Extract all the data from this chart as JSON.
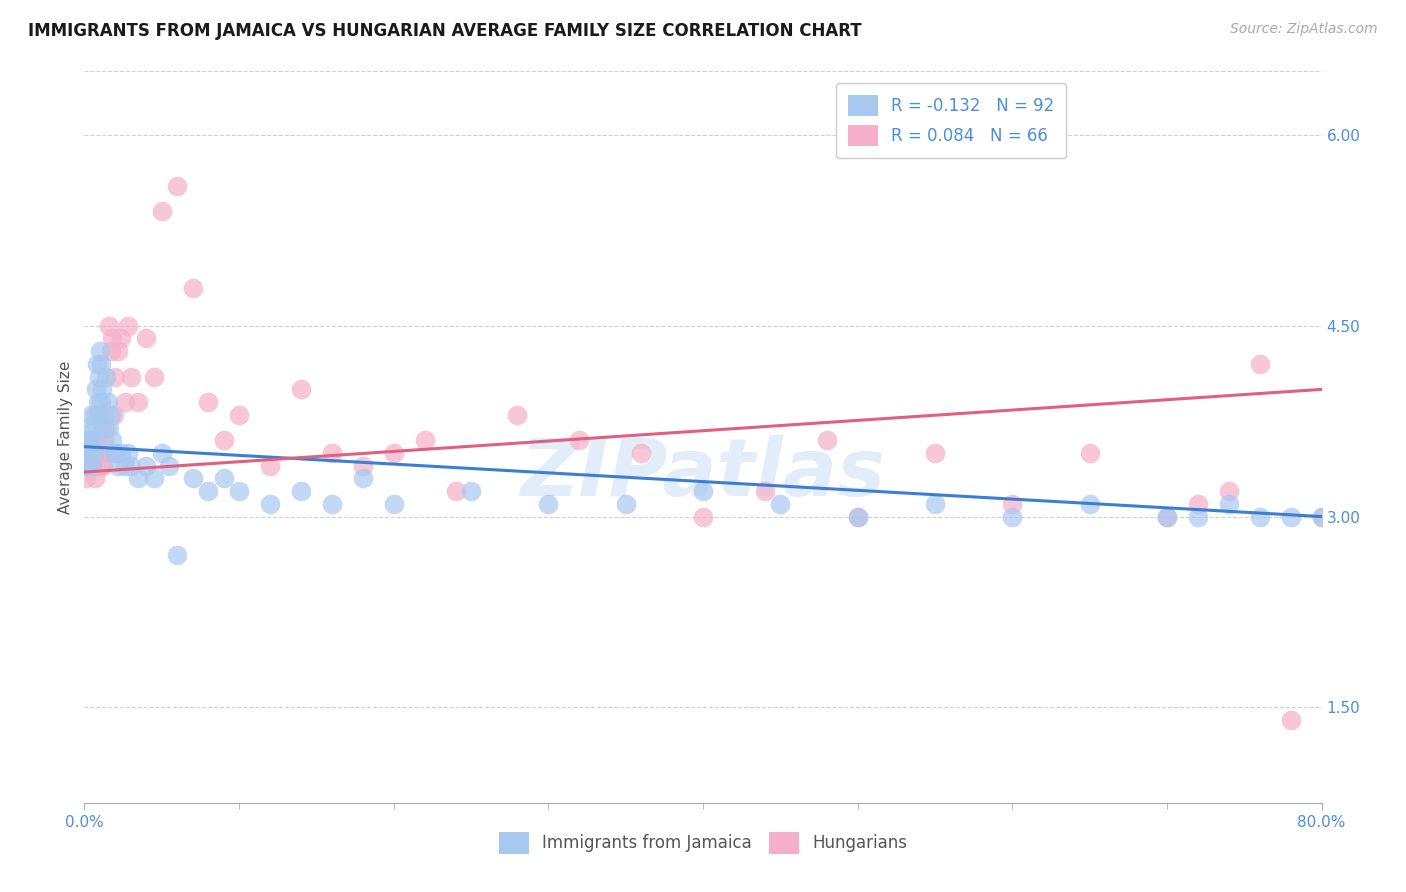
{
  "title": "IMMIGRANTS FROM JAMAICA VS HUNGARIAN AVERAGE FAMILY SIZE CORRELATION CHART",
  "source": "Source: ZipAtlas.com",
  "ylabel": "Average Family Size",
  "right_yticks": [
    1.5,
    3.0,
    4.5,
    6.0
  ],
  "watermark": "ZIPatlas",
  "legend_entry_jamaica": "R = -0.132   N = 92",
  "legend_entry_hungarian": "R = 0.084   N = 66",
  "legend_labels_bottom": [
    "Immigrants from Jamaica",
    "Hungarians"
  ],
  "jamaica_color": "#a8c8f0",
  "hungarian_color": "#f4b0c8",
  "jamaica_line_color": "#3a7fd5",
  "hungarian_line_color": "#e06080",
  "jamaica_scatter_x": [
    0.1,
    0.15,
    0.2,
    0.25,
    0.3,
    0.35,
    0.4,
    0.45,
    0.5,
    0.55,
    0.6,
    0.65,
    0.7,
    0.75,
    0.8,
    0.85,
    0.9,
    0.95,
    1.0,
    1.05,
    1.1,
    1.15,
    1.2,
    1.3,
    1.4,
    1.5,
    1.6,
    1.7,
    1.8,
    1.9,
    2.0,
    2.2,
    2.4,
    2.6,
    2.8,
    3.0,
    3.5,
    4.0,
    4.5,
    5.0,
    5.5,
    6.0,
    7.0,
    8.0,
    9.0,
    10.0,
    12.0,
    14.0,
    16.0,
    18.0,
    20.0,
    25.0,
    30.0,
    35.0,
    40.0,
    45.0,
    50.0,
    55.0,
    60.0,
    65.0,
    70.0,
    72.0,
    74.0,
    76.0,
    78.0,
    80.0
  ],
  "jamaica_scatter_y": [
    3.5,
    3.6,
    3.4,
    3.7,
    3.5,
    3.6,
    3.8,
    3.5,
    3.4,
    3.6,
    3.7,
    3.5,
    3.8,
    4.0,
    4.2,
    3.9,
    3.8,
    4.1,
    4.3,
    3.9,
    4.2,
    4.0,
    3.7,
    3.8,
    4.1,
    3.9,
    3.7,
    3.8,
    3.6,
    3.5,
    3.5,
    3.4,
    3.5,
    3.4,
    3.5,
    3.4,
    3.3,
    3.4,
    3.3,
    3.5,
    3.4,
    2.7,
    3.3,
    3.2,
    3.3,
    3.2,
    3.1,
    3.2,
    3.1,
    3.3,
    3.1,
    3.2,
    3.1,
    3.1,
    3.2,
    3.1,
    3.0,
    3.1,
    3.0,
    3.1,
    3.0,
    3.0,
    3.1,
    3.0,
    3.0,
    3.0
  ],
  "hungarian_scatter_x": [
    0.1,
    0.2,
    0.3,
    0.4,
    0.5,
    0.6,
    0.7,
    0.8,
    0.9,
    1.0,
    1.1,
    1.2,
    1.3,
    1.4,
    1.5,
    1.6,
    1.7,
    1.8,
    1.9,
    2.0,
    2.2,
    2.4,
    2.6,
    2.8,
    3.0,
    3.5,
    4.0,
    4.5,
    5.0,
    6.0,
    7.0,
    8.0,
    9.0,
    10.0,
    12.0,
    14.0,
    16.0,
    18.0,
    20.0,
    22.0,
    24.0,
    28.0,
    32.0,
    36.0,
    40.0,
    44.0,
    48.0,
    50.0,
    55.0,
    60.0,
    65.0,
    70.0,
    72.0,
    74.0,
    76.0,
    78.0,
    80.0
  ],
  "hungarian_scatter_y": [
    3.3,
    3.4,
    3.5,
    3.6,
    3.4,
    3.5,
    3.3,
    3.6,
    3.8,
    3.4,
    3.5,
    3.4,
    3.6,
    3.7,
    3.5,
    4.5,
    4.3,
    4.4,
    3.8,
    4.1,
    4.3,
    4.4,
    3.9,
    4.5,
    4.1,
    3.9,
    4.4,
    4.1,
    5.4,
    5.6,
    4.8,
    3.9,
    3.6,
    3.8,
    3.4,
    4.0,
    3.5,
    3.4,
    3.5,
    3.6,
    3.2,
    3.8,
    3.6,
    3.5,
    3.0,
    3.2,
    3.6,
    3.0,
    3.5,
    3.1,
    3.5,
    3.0,
    3.1,
    3.2,
    4.2,
    1.4,
    3.0
  ],
  "xmin": 0,
  "xmax": 80,
  "ymin": 0.75,
  "ymax": 6.5,
  "jamaica_trend_x": [
    0,
    80
  ],
  "jamaica_trend_y": [
    3.55,
    3.0
  ],
  "hungarian_trend_x": [
    0,
    80
  ],
  "hungarian_trend_y": [
    3.35,
    4.0
  ],
  "grid_color": "#d0d0d0",
  "background_color": "#ffffff",
  "title_fontsize": 12,
  "axis_fontsize": 11,
  "legend_fontsize": 12,
  "source_fontsize": 10
}
